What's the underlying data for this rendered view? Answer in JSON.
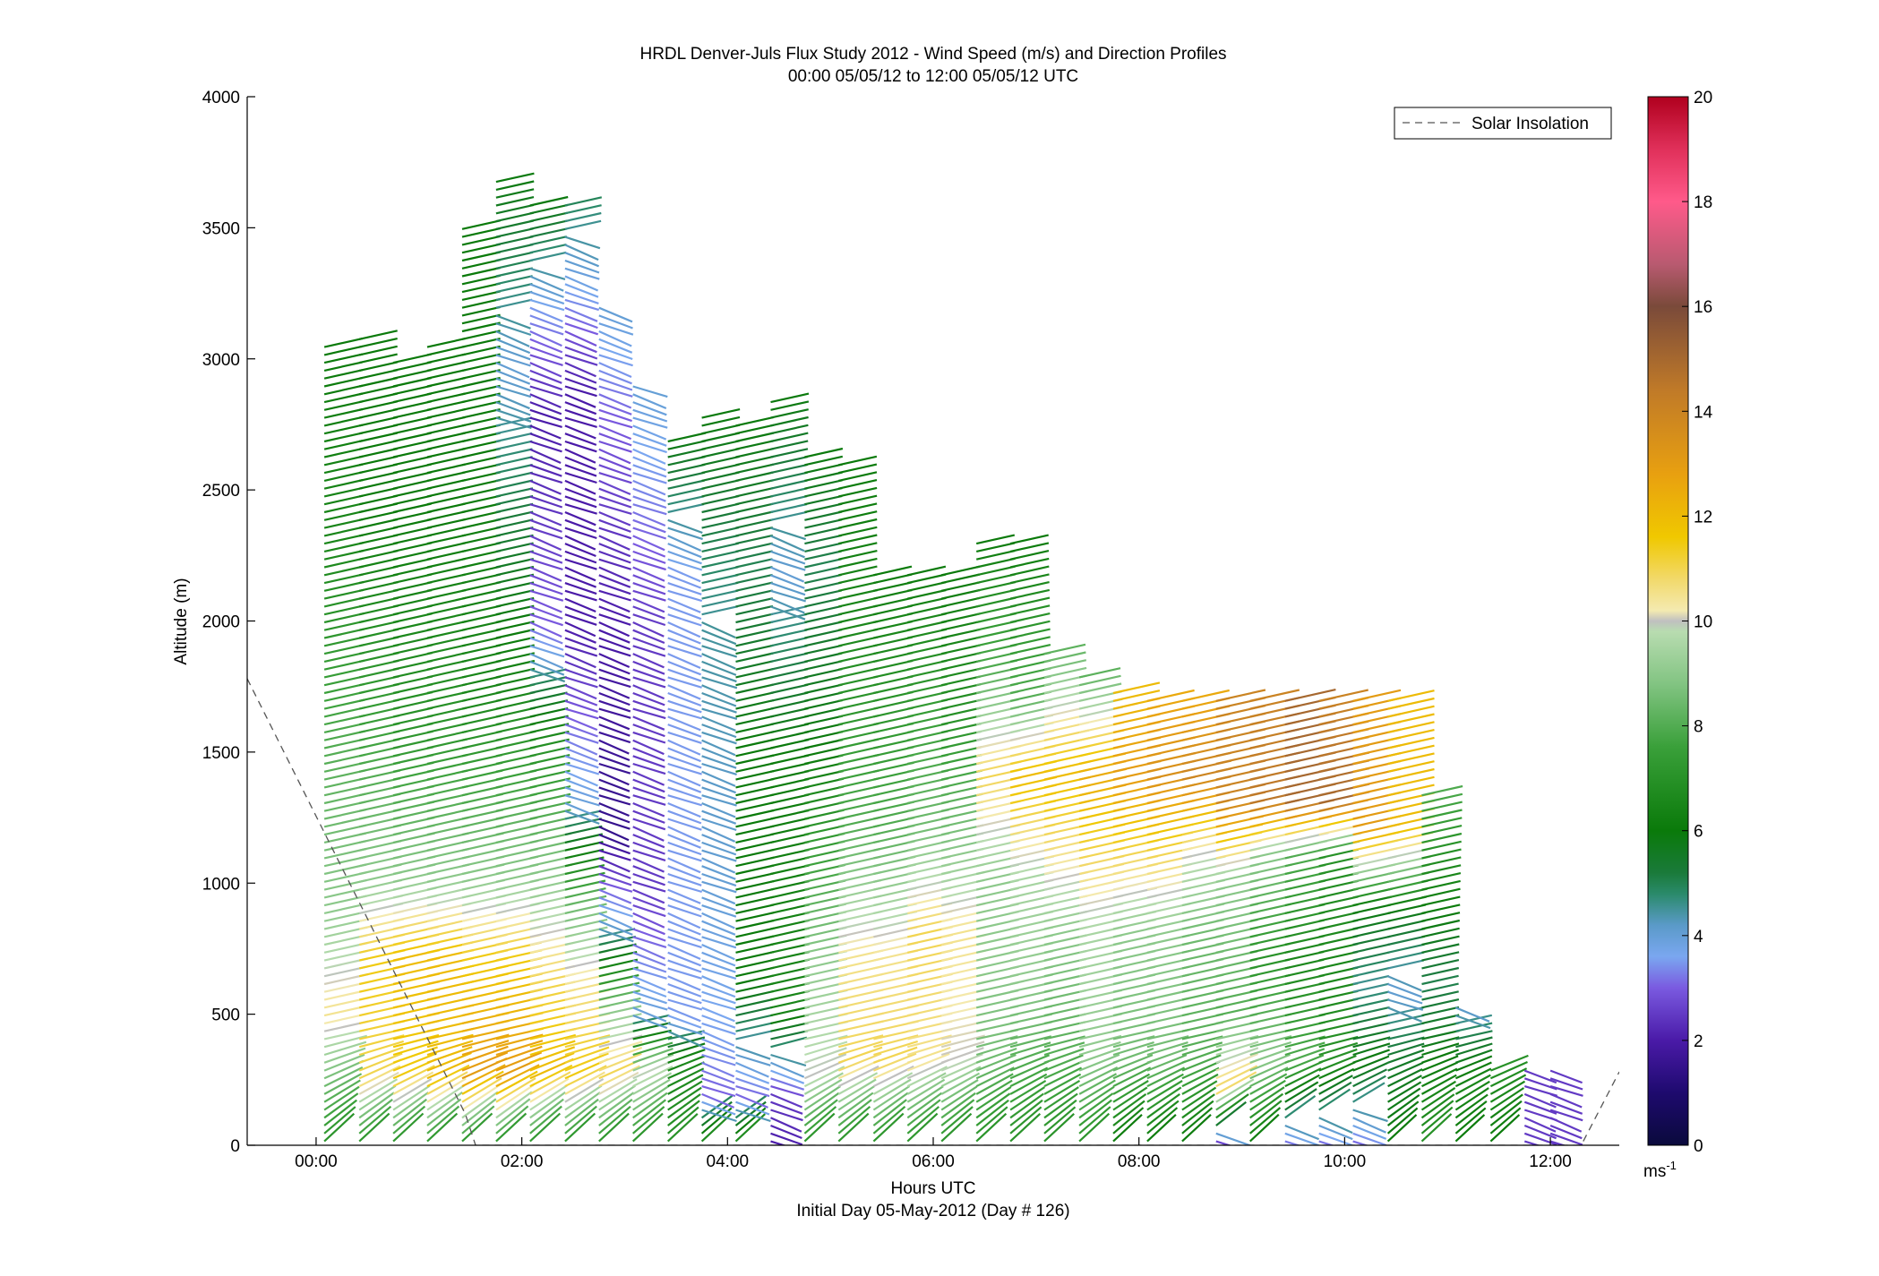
{
  "chart_data": {
    "type": "wind-barb-profile",
    "title": "HRDL Denver-Juls Flux Study 2012 - Wind Speed (m/s) and Direction Profiles",
    "subtitle": "00:00 05/05/12 to 12:00 05/05/12  UTC",
    "xlabel": "Hours UTC",
    "xlabel2": "Initial Day 05-May-2012 (Day # 126)",
    "ylabel": "Altitude (m)",
    "xlim": [
      -0.67,
      12.67
    ],
    "ylim": [
      0,
      4000
    ],
    "x_ticks": [
      {
        "value": 0,
        "label": "00:00"
      },
      {
        "value": 2,
        "label": "02:00"
      },
      {
        "value": 4,
        "label": "04:00"
      },
      {
        "value": 6,
        "label": "06:00"
      },
      {
        "value": 8,
        "label": "08:00"
      },
      {
        "value": 10,
        "label": "10:00"
      },
      {
        "value": 12,
        "label": "12:00"
      }
    ],
    "y_ticks": [
      {
        "value": 0,
        "label": "0"
      },
      {
        "value": 500,
        "label": "500"
      },
      {
        "value": 1000,
        "label": "1000"
      },
      {
        "value": 1500,
        "label": "1500"
      },
      {
        "value": 2000,
        "label": "2000"
      },
      {
        "value": 2500,
        "label": "2500"
      },
      {
        "value": 3000,
        "label": "3000"
      },
      {
        "value": 3500,
        "label": "3500"
      },
      {
        "value": 4000,
        "label": "4000"
      }
    ],
    "legend": {
      "label": "Solar Insolation",
      "placement": "top-right",
      "line_style": "dashed"
    },
    "colorbar": {
      "min": 0,
      "max": 20,
      "ticks": [
        {
          "value": 0,
          "label": "0"
        },
        {
          "value": 2,
          "label": "2"
        },
        {
          "value": 4,
          "label": "4"
        },
        {
          "value": 6,
          "label": "6"
        },
        {
          "value": 8,
          "label": "8"
        },
        {
          "value": 10,
          "label": "10"
        },
        {
          "value": 12,
          "label": "12"
        },
        {
          "value": 14,
          "label": "14"
        },
        {
          "value": 16,
          "label": "16"
        },
        {
          "value": 18,
          "label": "18"
        },
        {
          "value": 20,
          "label": "20"
        }
      ],
      "unit_label": "ms",
      "unit_exponent": "-1"
    },
    "solar_insolation_curve": [
      [
        -0.67,
        1780
      ],
      [
        1.45,
        120
      ],
      [
        1.55,
        0
      ],
      [
        12.3,
        0
      ],
      [
        12.67,
        280
      ]
    ],
    "profiles": [
      {
        "time": 0.08,
        "top": 3050,
        "speed": [
          [
            0,
            7
          ],
          [
            300,
            9
          ],
          [
            500,
            10.5
          ],
          [
            900,
            9
          ],
          [
            1500,
            8
          ],
          [
            2300,
            6.5
          ],
          [
            3000,
            6
          ]
        ]
      },
      {
        "time": 0.42,
        "top": 3080,
        "speed": [
          [
            0,
            7
          ],
          [
            250,
            11
          ],
          [
            700,
            11.5
          ],
          [
            1000,
            9
          ],
          [
            1600,
            7.5
          ],
          [
            2400,
            6
          ],
          [
            3080,
            6
          ]
        ]
      },
      {
        "time": 0.75,
        "top": 3000,
        "speed": [
          [
            0,
            7
          ],
          [
            250,
            11.5
          ],
          [
            700,
            12
          ],
          [
            1000,
            9
          ],
          [
            1600,
            7
          ],
          [
            2400,
            6
          ],
          [
            3000,
            6
          ]
        ]
      },
      {
        "time": 1.08,
        "top": 3050,
        "speed": [
          [
            0,
            7
          ],
          [
            250,
            12
          ],
          [
            700,
            12
          ],
          [
            1000,
            9
          ],
          [
            1600,
            7
          ],
          [
            2400,
            6
          ],
          [
            3050,
            6
          ]
        ]
      },
      {
        "time": 1.42,
        "top": 3500,
        "speed": [
          [
            0,
            7
          ],
          [
            250,
            13
          ],
          [
            700,
            11.5
          ],
          [
            1000,
            9
          ],
          [
            1700,
            6.5
          ],
          [
            2600,
            6
          ],
          [
            3500,
            6
          ]
        ]
      },
      {
        "time": 1.75,
        "top": 3700,
        "speed": [
          [
            0,
            7
          ],
          [
            250,
            13
          ],
          [
            700,
            11.5
          ],
          [
            1000,
            9
          ],
          [
            1700,
            6.5
          ],
          [
            2500,
            5
          ],
          [
            3000,
            4
          ],
          [
            3700,
            6
          ]
        ]
      },
      {
        "time": 2.08,
        "top": 3600,
        "speed": [
          [
            0,
            7
          ],
          [
            250,
            12
          ],
          [
            600,
            11
          ],
          [
            1000,
            9
          ],
          [
            1500,
            7
          ],
          [
            2000,
            3
          ],
          [
            2800,
            2
          ],
          [
            3200,
            3.5
          ],
          [
            3600,
            6
          ]
        ]
      },
      {
        "time": 2.42,
        "top": 3600,
        "speed": [
          [
            0,
            7
          ],
          [
            250,
            11.5
          ],
          [
            600,
            10.5
          ],
          [
            900,
            8.5
          ],
          [
            1300,
            4
          ],
          [
            2000,
            2
          ],
          [
            2900,
            2
          ],
          [
            3600,
            5
          ]
        ]
      },
      {
        "time": 2.75,
        "top": 3200,
        "speed": [
          [
            0,
            7
          ],
          [
            250,
            11
          ],
          [
            500,
            9
          ],
          [
            800,
            4.5
          ],
          [
            1200,
            1.5
          ],
          [
            2000,
            2
          ],
          [
            2800,
            3
          ],
          [
            3200,
            4
          ]
        ]
      },
      {
        "time": 3.08,
        "top": 2900,
        "speed": [
          [
            0,
            7
          ],
          [
            250,
            10
          ],
          [
            500,
            4
          ],
          [
            1000,
            2.5
          ],
          [
            2000,
            2.5
          ],
          [
            2900,
            4
          ]
        ]
      },
      {
        "time": 3.42,
        "top": 2700,
        "speed": [
          [
            0,
            7
          ],
          [
            300,
            6.5
          ],
          [
            500,
            3.5
          ],
          [
            1500,
            3.5
          ],
          [
            2200,
            3.5
          ],
          [
            2700,
            6
          ]
        ]
      },
      {
        "time": 3.75,
        "top": 2800,
        "speed": [
          [
            0,
            7
          ],
          [
            200,
            3
          ],
          [
            400,
            3.5
          ],
          [
            1000,
            4
          ],
          [
            2000,
            4.5
          ],
          [
            2800,
            6
          ]
        ]
      },
      {
        "time": 4.08,
        "top": 2750,
        "speed": [
          [
            0,
            7
          ],
          [
            200,
            3
          ],
          [
            600,
            6
          ],
          [
            1500,
            6
          ],
          [
            2200,
            5
          ],
          [
            2750,
            6
          ]
        ]
      },
      {
        "time": 4.42,
        "top": 2850,
        "speed": [
          [
            0,
            2
          ],
          [
            200,
            2.5
          ],
          [
            500,
            6.5
          ],
          [
            1500,
            6
          ],
          [
            2200,
            4
          ],
          [
            2850,
            6
          ]
        ]
      },
      {
        "time": 4.75,
        "top": 2650,
        "speed": [
          [
            0,
            7
          ],
          [
            250,
            10
          ],
          [
            700,
            9
          ],
          [
            1500,
            6
          ],
          [
            2200,
            5
          ],
          [
            2650,
            6
          ]
        ]
      },
      {
        "time": 5.08,
        "top": 2600,
        "speed": [
          [
            0,
            7
          ],
          [
            300,
            11
          ],
          [
            700,
            10.5
          ],
          [
            1200,
            8
          ],
          [
            2000,
            6.5
          ],
          [
            2600,
            6
          ]
        ]
      },
      {
        "time": 5.42,
        "top": 2200,
        "speed": [
          [
            0,
            7
          ],
          [
            300,
            11
          ],
          [
            700,
            10.5
          ],
          [
            1200,
            8
          ],
          [
            2200,
            6
          ]
        ]
      },
      {
        "time": 5.75,
        "top": 2200,
        "speed": [
          [
            0,
            7
          ],
          [
            300,
            10.5
          ],
          [
            800,
            11
          ],
          [
            1200,
            8.5
          ],
          [
            2200,
            6
          ]
        ]
      },
      {
        "time": 6.08,
        "top": 2200,
        "speed": [
          [
            0,
            7
          ],
          [
            300,
            10
          ],
          [
            800,
            10.5
          ],
          [
            1100,
            9
          ],
          [
            1600,
            7
          ],
          [
            2200,
            6
          ]
        ]
      },
      {
        "time": 6.42,
        "top": 2300,
        "speed": [
          [
            0,
            7
          ],
          [
            300,
            8.5
          ],
          [
            700,
            9
          ],
          [
            1000,
            9
          ],
          [
            1400,
            11
          ],
          [
            1800,
            8
          ],
          [
            2300,
            6
          ]
        ]
      },
      {
        "time": 6.75,
        "top": 2300,
        "speed": [
          [
            0,
            7
          ],
          [
            300,
            8
          ],
          [
            600,
            9
          ],
          [
            1000,
            9.5
          ],
          [
            1400,
            12
          ],
          [
            1700,
            8
          ],
          [
            2300,
            6
          ]
        ]
      },
      {
        "time": 7.08,
        "top": 1900,
        "speed": [
          [
            0,
            7
          ],
          [
            300,
            8
          ],
          [
            800,
            9
          ],
          [
            1100,
            10.5
          ],
          [
            1400,
            12
          ],
          [
            1900,
            8
          ]
        ]
      },
      {
        "time": 7.42,
        "top": 1800,
        "speed": [
          [
            0,
            7
          ],
          [
            300,
            9
          ],
          [
            800,
            9.5
          ],
          [
            1100,
            11
          ],
          [
            1400,
            12.5
          ],
          [
            1800,
            8
          ]
        ]
      },
      {
        "time": 7.75,
        "top": 1750,
        "speed": [
          [
            0,
            6
          ],
          [
            300,
            8.5
          ],
          [
            800,
            9
          ],
          [
            1100,
            11
          ],
          [
            1400,
            13
          ],
          [
            1700,
            12
          ]
        ]
      },
      {
        "time": 8.08,
        "top": 1700,
        "speed": [
          [
            0,
            6
          ],
          [
            300,
            8.5
          ],
          [
            800,
            9
          ],
          [
            1100,
            11
          ],
          [
            1400,
            13.5
          ],
          [
            1700,
            12.5
          ]
        ]
      },
      {
        "time": 8.42,
        "top": 1700,
        "speed": [
          [
            0,
            6
          ],
          [
            300,
            8
          ],
          [
            800,
            8.5
          ],
          [
            1100,
            10
          ],
          [
            1400,
            14
          ],
          [
            1700,
            12.5
          ]
        ]
      },
      {
        "time": 8.75,
        "top": 1700,
        "speed": [
          [
            0,
            2
          ],
          [
            200,
            11
          ],
          [
            500,
            8
          ],
          [
            1000,
            9
          ],
          [
            1300,
            14
          ],
          [
            1700,
            14
          ]
        ]
      },
      {
        "time": 9.08,
        "top": 1700,
        "speed": [
          [
            0,
            6
          ],
          [
            300,
            9
          ],
          [
            700,
            7
          ],
          [
            1100,
            9
          ],
          [
            1300,
            14.5
          ],
          [
            1700,
            14
          ]
        ]
      },
      {
        "time": 9.42,
        "top": 1700,
        "speed": [
          [
            0,
            3
          ],
          [
            300,
            8
          ],
          [
            700,
            6.5
          ],
          [
            1100,
            8
          ],
          [
            1300,
            15
          ],
          [
            1700,
            15
          ]
        ]
      },
      {
        "time": 9.75,
        "top": 1700,
        "speed": [
          [
            0,
            3
          ],
          [
            300,
            7
          ],
          [
            700,
            6.5
          ],
          [
            1100,
            7
          ],
          [
            1300,
            15
          ],
          [
            1700,
            14
          ]
        ]
      },
      {
        "time": 10.08,
        "top": 1700,
        "speed": [
          [
            0,
            3
          ],
          [
            300,
            6
          ],
          [
            600,
            4.5
          ],
          [
            900,
            6
          ],
          [
            1200,
            13
          ],
          [
            1700,
            13
          ]
        ]
      },
      {
        "time": 10.42,
        "top": 1700,
        "speed": [
          [
            0,
            6
          ],
          [
            300,
            5.5
          ],
          [
            600,
            4
          ],
          [
            900,
            6
          ],
          [
            1200,
            12
          ],
          [
            1700,
            12
          ]
        ]
      },
      {
        "time": 10.75,
        "top": 1350,
        "speed": [
          [
            0,
            7
          ],
          [
            300,
            6
          ],
          [
            600,
            5
          ],
          [
            1000,
            6.5
          ],
          [
            1350,
            8
          ]
        ]
      },
      {
        "time": 11.08,
        "top": 550,
        "speed": [
          [
            0,
            6
          ],
          [
            200,
            6.5
          ],
          [
            550,
            4
          ]
        ]
      },
      {
        "time": 11.42,
        "top": 300,
        "speed": [
          [
            0,
            6
          ],
          [
            300,
            7
          ]
        ]
      },
      {
        "time": 11.75,
        "top": 300,
        "speed": [
          [
            0,
            2.5
          ],
          [
            300,
            2.5
          ]
        ]
      },
      {
        "time": 12.0,
        "top": 300,
        "speed": [
          [
            0,
            2.5
          ],
          [
            300,
            2.5
          ]
        ]
      }
    ]
  }
}
